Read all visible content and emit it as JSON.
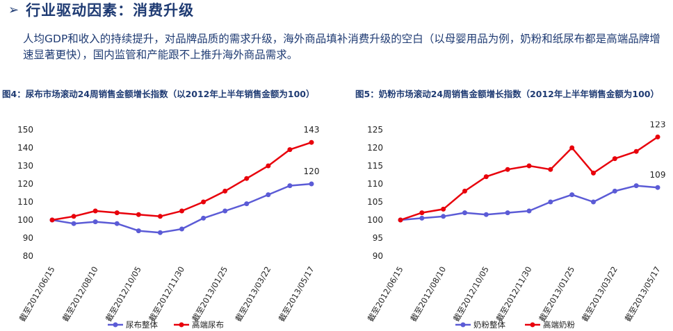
{
  "header": {
    "title": "行业驱动因素：消费升级",
    "bullet_icon": "arrow-right-icon"
  },
  "body_text": "人均GDP和收入的持续提升，对品牌品质的需求升级，海外商品填补消费升级的空白（以母婴用品为例，奶粉和纸尿布都是高端品牌增速显著更快），国内监管和产能跟不上推升海外商品需求。",
  "colors": {
    "overall": "#5b5bd6",
    "premium": "#e8000b",
    "text": "#1f3b73"
  },
  "chart_data": [
    {
      "caption": "图4：尿布市场滚动24周销售金额增长指数（以2012年上半年销售金额为100）",
      "type": "line",
      "x": [
        "截至2012/06/15",
        "截至2012/07/13",
        "截至2012/08/10",
        "截至2012/09/07",
        "截至2012/10/05",
        "截至2012/11/02",
        "截至2012/11/30",
        "截至2012/12/28",
        "截至2013/01/25",
        "截至2013/02/22",
        "截至2013/03/22",
        "截至2013/04/19",
        "截至2013/05/17"
      ],
      "x_tick_labels": [
        "截至2012/06/15",
        "截至2012/08/10",
        "截至2012/10/05",
        "截至2012/11/30",
        "截至2013/01/25",
        "截至2013/03/22",
        "截至2013/05/17"
      ],
      "ylim": [
        80,
        150
      ],
      "yticks": [
        80,
        90,
        100,
        110,
        120,
        130,
        140,
        150
      ],
      "series": [
        {
          "name": "尿布整体",
          "color": "#5b5bd6",
          "values": [
            100,
            98,
            99,
            98,
            94,
            93,
            95,
            101,
            105,
            109,
            114,
            119,
            120
          ]
        },
        {
          "name": "高端尿布",
          "color": "#e8000b",
          "values": [
            100,
            102,
            105,
            104,
            103,
            102,
            105,
            110,
            116,
            123,
            130,
            139,
            143
          ]
        }
      ],
      "end_labels": [
        "120",
        "143"
      ],
      "legend": "bottom"
    },
    {
      "caption": "图5：奶粉市场滚动24周销售金额增长指数（2012年上半年销售金额为100）",
      "type": "line",
      "x": [
        "截至2012/06/15",
        "截至2012/07/13",
        "截至2012/08/10",
        "截至2012/09/07",
        "截至2012/10/05",
        "截至2012/11/02",
        "截至2012/11/30",
        "截至2012/12/28",
        "截至2013/01/25",
        "截至2013/02/22",
        "截至2013/03/22",
        "截至2013/04/19",
        "截至2013/05/17"
      ],
      "x_tick_labels": [
        "截至2012/06/15",
        "截至2012/08/10",
        "截至2012/10/05",
        "截至2012/11/30",
        "截至2013/01/25",
        "截至2013/03/22",
        "截至2013/05/17"
      ],
      "ylim": [
        90,
        125
      ],
      "yticks": [
        90,
        95,
        100,
        105,
        110,
        115,
        120,
        125
      ],
      "series": [
        {
          "name": "奶粉整体",
          "color": "#5b5bd6",
          "values": [
            100,
            100.5,
            101,
            102,
            101.5,
            102,
            102.5,
            105,
            107,
            105,
            108,
            109.5,
            109
          ]
        },
        {
          "name": "高端奶粉",
          "color": "#e8000b",
          "values": [
            100,
            102,
            103,
            108,
            112,
            114,
            115,
            114,
            120,
            113,
            117,
            119,
            123
          ]
        }
      ],
      "end_labels": [
        "109",
        "123"
      ],
      "legend": "bottom"
    }
  ]
}
